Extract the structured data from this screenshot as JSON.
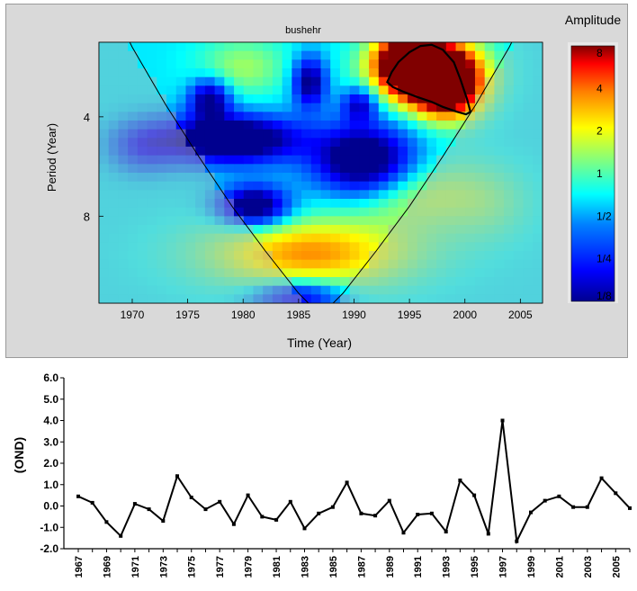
{
  "chart_data": [
    {
      "type": "heatmap",
      "title": "bushehr",
      "xlabel": "Time (Year)",
      "ylabel": "Period  (Year)",
      "xlim": [
        1967,
        2007
      ],
      "ylim": [
        1,
        11.5
      ],
      "x_ticks": [
        "1970",
        "1975",
        "1980",
        "1985",
        "1990",
        "1995",
        "2000",
        "2005"
      ],
      "y_ticks": [
        "4",
        "8"
      ],
      "y_tick_values": [
        4,
        8
      ],
      "colorbar": {
        "label": "Amplitude",
        "ticks": [
          "8",
          "4",
          "2",
          "1",
          "1/2",
          "1/4",
          "1/8"
        ],
        "tick_values": [
          8,
          4,
          2,
          1,
          0.5,
          0.25,
          0.125
        ]
      },
      "features": [
        {
          "kind": "peak",
          "x": 1996.5,
          "y": 2.1,
          "amplitude": 8
        },
        {
          "kind": "low",
          "x": 1979,
          "y": 4.9,
          "amplitude": 0.125
        },
        {
          "kind": "low",
          "x": 1991,
          "y": 5.8,
          "amplitude": 0.125
        },
        {
          "kind": "low",
          "x": 1981,
          "y": 7.6,
          "amplitude": 0.125
        },
        {
          "kind": "low",
          "x": 1986,
          "y": 2.6,
          "amplitude": 0.15
        },
        {
          "kind": "low",
          "x": 1977,
          "y": 3.3,
          "amplitude": 0.15
        },
        {
          "kind": "high",
          "x": 1986,
          "y": 9.5,
          "amplitude": 1.5
        },
        {
          "kind": "high",
          "x": 1980,
          "y": 2.0,
          "amplitude": 0.9
        }
      ],
      "significance_contour": {
        "x": [
          1993.0,
          1993.4,
          1994.0,
          1995.0,
          1996.0,
          1997.0,
          1998.0,
          1999.0,
          1999.6,
          2000.2,
          2000.5,
          2000.1,
          1999.3,
          1998.0,
          1997.0,
          1995.7,
          1994.5,
          1993.5,
          1993.0
        ],
        "y": [
          2.6,
          2.2,
          1.8,
          1.4,
          1.15,
          1.1,
          1.3,
          1.8,
          2.5,
          3.3,
          3.8,
          3.9,
          3.8,
          3.6,
          3.4,
          3.2,
          3.0,
          2.8,
          2.6
        ]
      },
      "cone_of_influence": {
        "x": [
          1967.0,
          1970.0,
          1973.0,
          1976.0,
          1979.0,
          1982.0,
          1985.0,
          1987.0,
          1989.0,
          1992.0,
          1995.0,
          1998.0,
          2001.0,
          2004.0,
          2007.0
        ],
        "y": [
          -1.5,
          1.2,
          3.5,
          5.6,
          7.6,
          9.4,
          11.1,
          12.0,
          11.1,
          9.4,
          7.6,
          5.6,
          3.5,
          1.2,
          -1.5
        ]
      }
    },
    {
      "type": "line",
      "title": "",
      "xlabel": "",
      "ylabel": "(OND)",
      "ylim": [
        -2.0,
        6.0
      ],
      "y_ticks": [
        "6.0",
        "5.0",
        "4.0",
        "3.0",
        "2.0",
        "1.0",
        "0.0",
        "-1.0",
        "-2.0"
      ],
      "y_tick_values": [
        6,
        5,
        4,
        3,
        2,
        1,
        0,
        -1,
        -2
      ],
      "x_tick_labels": [
        "1967",
        "1969",
        "1971",
        "1973",
        "1975",
        "1977",
        "1979",
        "1981",
        "1983",
        "1985",
        "1987",
        "1989",
        "1991",
        "1993",
        "1995",
        "1997",
        "1999",
        "2001",
        "2003",
        "2005"
      ],
      "x": [
        1967,
        1968,
        1969,
        1970,
        1971,
        1972,
        1973,
        1974,
        1975,
        1976,
        1977,
        1978,
        1979,
        1980,
        1981,
        1982,
        1983,
        1984,
        1985,
        1986,
        1987,
        1988,
        1989,
        1990,
        1991,
        1992,
        1993,
        1994,
        1995,
        1996,
        1997,
        1998,
        1999,
        2000,
        2001,
        2002,
        2003,
        2004,
        2005,
        2006
      ],
      "values": [
        0.45,
        0.15,
        -0.75,
        -1.4,
        0.1,
        -0.15,
        -0.7,
        1.4,
        0.4,
        -0.15,
        0.2,
        -0.85,
        0.5,
        -0.5,
        -0.65,
        0.2,
        -1.05,
        -0.35,
        -0.05,
        1.1,
        -0.35,
        -0.45,
        0.25,
        -1.25,
        -0.4,
        -0.35,
        -1.2,
        1.2,
        0.5,
        -1.3,
        4.0,
        -1.65,
        -0.3,
        0.25,
        0.45,
        -0.05,
        -0.05,
        1.3,
        0.6,
        -0.1
      ]
    }
  ]
}
